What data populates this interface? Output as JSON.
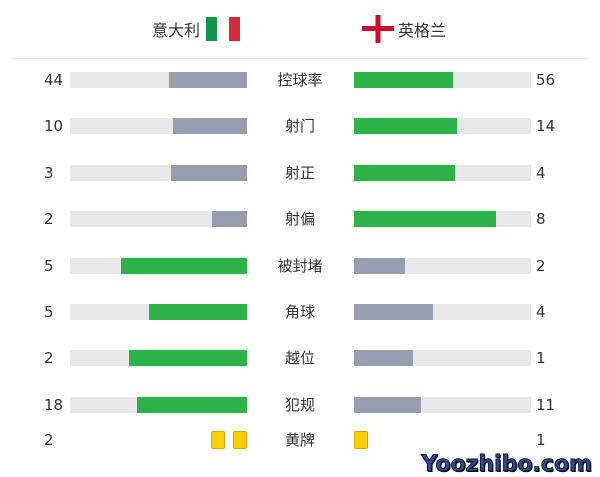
{
  "teams": {
    "home": {
      "name": "意大利",
      "flag": "italy-flag-icon"
    },
    "away": {
      "name": "英格兰",
      "flag": "england-flag-icon"
    }
  },
  "colors": {
    "leader": "#2db34a",
    "trailer": "#959dae",
    "track": "#e8e8e8",
    "yellow": "#fcd000"
  },
  "stats": [
    {
      "label": "控球率",
      "home": 44,
      "away": 56
    },
    {
      "label": "射门",
      "home": 10,
      "away": 14
    },
    {
      "label": "射正",
      "home": 3,
      "away": 4
    },
    {
      "label": "射偏",
      "home": 2,
      "away": 8
    },
    {
      "label": "被封堵",
      "home": 5,
      "away": 2
    },
    {
      "label": "角球",
      "home": 5,
      "away": 4
    },
    {
      "label": "越位",
      "home": 2,
      "away": 1
    },
    {
      "label": "犯规",
      "home": 18,
      "away": 11
    }
  ],
  "yellow_cards": {
    "label": "黄牌",
    "home": 2,
    "away": 1
  },
  "watermark": "Yoozhibo.com"
}
